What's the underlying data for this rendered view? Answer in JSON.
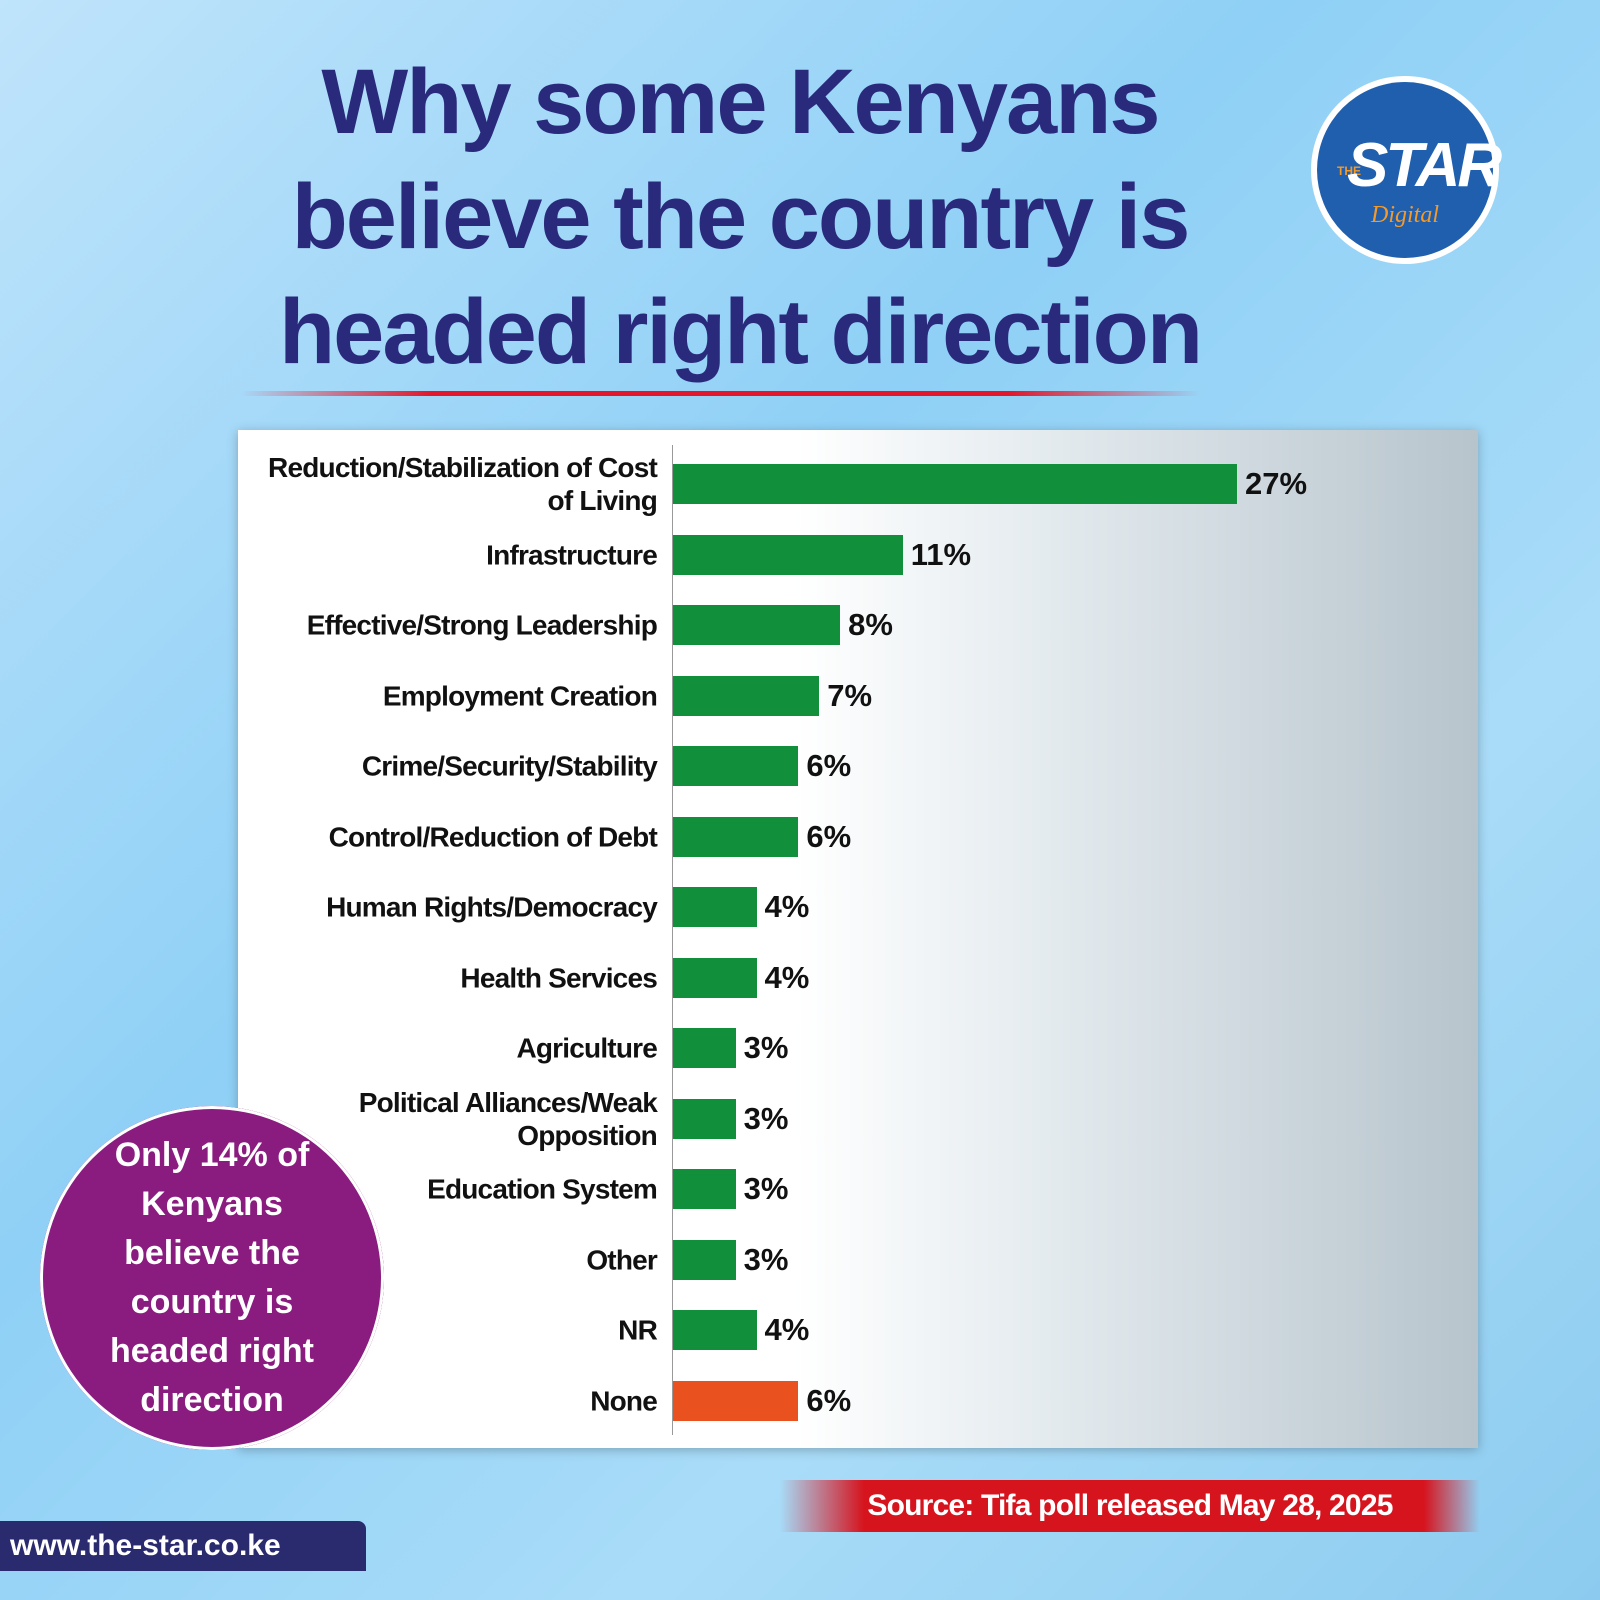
{
  "chart_data": {
    "type": "hbar",
    "title": "Why some Kenyans believe the country is headed right direction",
    "categories": [
      "Reduction/Stabilization of Cost of Living",
      "Infrastructure",
      "Effective/Strong Leadership",
      "Employment Creation",
      "Crime/Security/Stability",
      "Control/Reduction of Debt",
      "Human Rights/Democracy",
      "Health Services",
      "Agriculture",
      "Political Alliances/Weak Opposition",
      "Education System",
      "Other",
      "NR",
      "None"
    ],
    "values": [
      27,
      11,
      8,
      7,
      6,
      6,
      4,
      4,
      3,
      3,
      3,
      3,
      4,
      6
    ],
    "value_labels": [
      "27%",
      "11%",
      "8%",
      "7%",
      "6%",
      "6%",
      "4%",
      "4%",
      "3%",
      "3%",
      "3%",
      "3%",
      "4%",
      "6%"
    ],
    "colors": [
      "#118f3b",
      "#118f3b",
      "#118f3b",
      "#118f3b",
      "#118f3b",
      "#118f3b",
      "#118f3b",
      "#118f3b",
      "#118f3b",
      "#118f3b",
      "#118f3b",
      "#118f3b",
      "#118f3b",
      "#e9521f"
    ],
    "callout": "Only 14% of Kenyans believe the country is headed right direction",
    "source": "Source: Tifa poll released May 28, 2025",
    "website": "www.the-star.co.ke",
    "logo": {
      "small": "THE",
      "main": "STAR",
      "sub": "Digital"
    }
  }
}
